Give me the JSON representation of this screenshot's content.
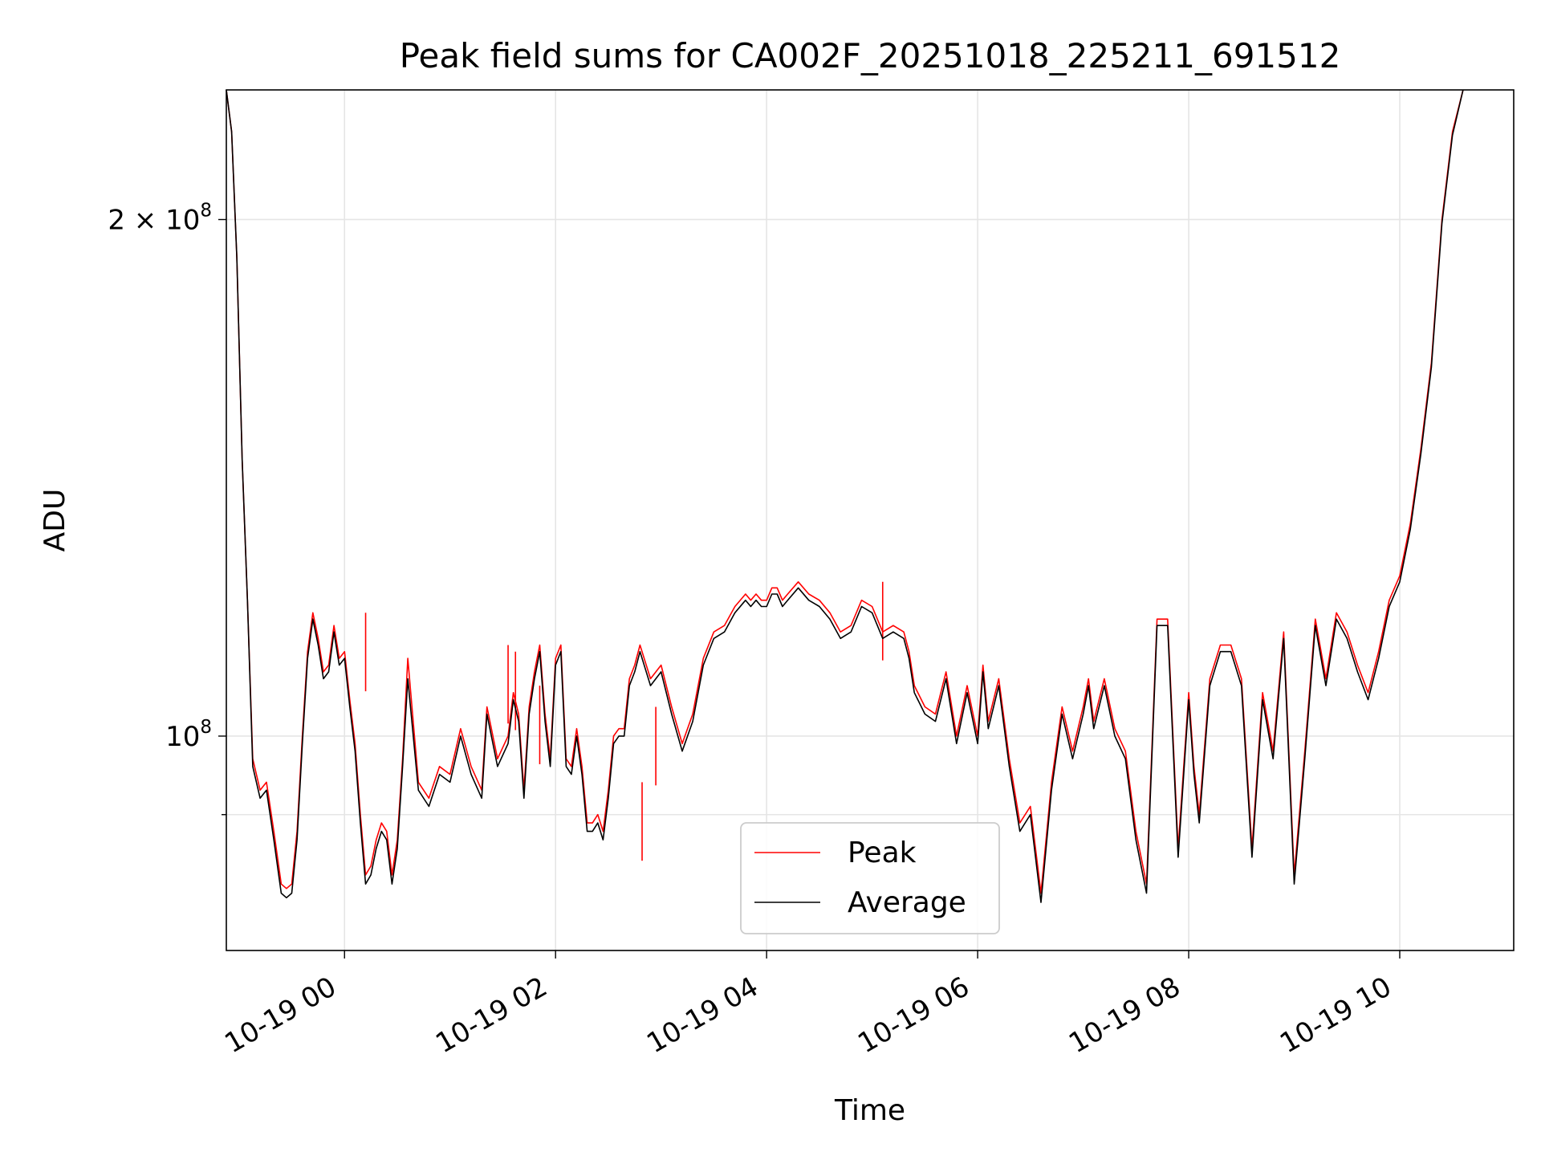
{
  "chart_data": {
    "type": "line",
    "title": "Peak field sums for CA002F_20251018_225211_691512",
    "xlabel": "Time",
    "ylabel": "ADU",
    "yscale": "log",
    "ylim": [
      75000000,
      238000000
    ],
    "xlim_hours": [
      -1.12,
      11.08
    ],
    "grid": true,
    "legend_position": "lower center",
    "x_ticks": [
      {
        "hour": 0,
        "label": "10-19 00"
      },
      {
        "hour": 2,
        "label": "10-19 02"
      },
      {
        "hour": 4,
        "label": "10-19 04"
      },
      {
        "hour": 6,
        "label": "10-19 06"
      },
      {
        "hour": 8,
        "label": "10-19 08"
      },
      {
        "hour": 10,
        "label": "10-19 10"
      }
    ],
    "y_ticks": [
      {
        "value": 200000000,
        "label": "2 × 10",
        "exp": "8"
      },
      {
        "value": 100000000,
        "label": "10",
        "exp": "8"
      }
    ],
    "y_minor_ticks": [
      90000000
    ],
    "series": [
      {
        "name": "Peak",
        "color": "#ff0000"
      },
      {
        "name": "Average",
        "color": "#000000"
      }
    ],
    "x_hours": [
      -1.12,
      -1.07,
      -1.02,
      -0.97,
      -0.92,
      -0.87,
      -0.8,
      -0.74,
      -0.67,
      -0.6,
      -0.55,
      -0.5,
      -0.45,
      -0.4,
      -0.35,
      -0.3,
      -0.25,
      -0.2,
      -0.15,
      -0.1,
      -0.05,
      0.0,
      0.05,
      0.1,
      0.15,
      0.2,
      0.25,
      0.3,
      0.35,
      0.4,
      0.45,
      0.5,
      0.55,
      0.6,
      0.7,
      0.8,
      0.9,
      1.0,
      1.1,
      1.2,
      1.3,
      1.35,
      1.45,
      1.55,
      1.6,
      1.65,
      1.7,
      1.75,
      1.8,
      1.85,
      1.9,
      1.95,
      2.0,
      2.05,
      2.1,
      2.15,
      2.2,
      2.25,
      2.3,
      2.35,
      2.4,
      2.45,
      2.5,
      2.55,
      2.6,
      2.65,
      2.7,
      2.75,
      2.8,
      2.9,
      3.0,
      3.1,
      3.2,
      3.3,
      3.4,
      3.5,
      3.6,
      3.7,
      3.8,
      3.85,
      3.9,
      3.95,
      4.0,
      4.05,
      4.1,
      4.15,
      4.2,
      4.3,
      4.4,
      4.5,
      4.6,
      4.7,
      4.8,
      4.9,
      5.0,
      5.1,
      5.2,
      5.3,
      5.35,
      5.4,
      5.5,
      5.6,
      5.7,
      5.8,
      5.9,
      6.0,
      6.05,
      6.1,
      6.2,
      6.3,
      6.4,
      6.5,
      6.6,
      6.7,
      6.8,
      6.9,
      7.0,
      7.05,
      7.1,
      7.2,
      7.3,
      7.4,
      7.5,
      7.6,
      7.7,
      7.8,
      7.9,
      8.0,
      8.05,
      8.1,
      8.2,
      8.3,
      8.4,
      8.5,
      8.6,
      8.7,
      8.8,
      8.9,
      9.0,
      9.1,
      9.2,
      9.3,
      9.4,
      9.5,
      9.6,
      9.7,
      9.8,
      9.9,
      10.0,
      10.1,
      10.2,
      10.3,
      10.4,
      10.5,
      10.6,
      10.7,
      10.8,
      10.9,
      11.0,
      11.08
    ],
    "peak_values": [
      238000000,
      225000000,
      190000000,
      145000000,
      120000000,
      97000000,
      93000000,
      94000000,
      88000000,
      82000000,
      81500000,
      82000000,
      88000000,
      100000000,
      112000000,
      118000000,
      114000000,
      109000000,
      110000000,
      116000000,
      111000000,
      112000000,
      105000000,
      99000000,
      90000000,
      83000000,
      84000000,
      87000000,
      89000000,
      88000000,
      83000000,
      87000000,
      97000000,
      111000000,
      94000000,
      92000000,
      96000000,
      95000000,
      101000000,
      96000000,
      93000000,
      104000000,
      97000000,
      100000000,
      106000000,
      103000000,
      93000000,
      104000000,
      109000000,
      113000000,
      103000000,
      97000000,
      111000000,
      113000000,
      97000000,
      96000000,
      101000000,
      96000000,
      89000000,
      89000000,
      90000000,
      88000000,
      93000000,
      100000000,
      101000000,
      101000000,
      108000000,
      110000000,
      113000000,
      108000000,
      110000000,
      104000000,
      99000000,
      103000000,
      111000000,
      115000000,
      116000000,
      119000000,
      121000000,
      120000000,
      121000000,
      120000000,
      120000000,
      122000000,
      122000000,
      120000000,
      121000000,
      123000000,
      121000000,
      120000000,
      118000000,
      115000000,
      116000000,
      120000000,
      119000000,
      115000000,
      116000000,
      115000000,
      112000000,
      107000000,
      104000000,
      103000000,
      109000000,
      100000000,
      107000000,
      100000000,
      110000000,
      102000000,
      108000000,
      97000000,
      89000000,
      91000000,
      81000000,
      94000000,
      104000000,
      98000000,
      104000000,
      108000000,
      102000000,
      108000000,
      101000000,
      98000000,
      88000000,
      82000000,
      117000000,
      117000000,
      86000000,
      106000000,
      96000000,
      90000000,
      108000000,
      113000000,
      113000000,
      108000000,
      86000000,
      106000000,
      98000000,
      115000000,
      83000000,
      98000000,
      117000000,
      108000000,
      118000000,
      115000000,
      110000000,
      106000000,
      112000000,
      120000000,
      124000000,
      133000000,
      147000000,
      165000000,
      200000000,
      225000000,
      238000000
    ],
    "average_values": [
      238000000,
      225000000,
      190000000,
      145000000,
      120000000,
      96000000,
      92000000,
      93000000,
      87000000,
      81000000,
      80500000,
      81000000,
      87000000,
      99000000,
      111000000,
      117000000,
      113000000,
      108000000,
      109000000,
      115000000,
      110000000,
      111000000,
      104000000,
      98000000,
      89000000,
      82000000,
      83000000,
      86000000,
      88000000,
      87000000,
      82000000,
      86000000,
      96000000,
      108000000,
      93000000,
      91000000,
      95000000,
      94000000,
      100000000,
      95000000,
      92000000,
      103000000,
      96000000,
      99000000,
      105000000,
      102000000,
      92000000,
      103000000,
      108000000,
      112000000,
      102000000,
      96000000,
      110000000,
      112000000,
      96000000,
      95000000,
      100000000,
      95000000,
      88000000,
      88000000,
      89000000,
      87000000,
      92000000,
      99000000,
      100000000,
      100000000,
      107000000,
      109000000,
      112000000,
      107000000,
      109000000,
      103000000,
      98000000,
      102000000,
      110000000,
      114000000,
      115000000,
      118000000,
      120000000,
      119000000,
      120000000,
      119000000,
      119000000,
      121000000,
      121000000,
      119000000,
      120000000,
      122000000,
      120000000,
      119000000,
      117000000,
      114000000,
      115000000,
      119000000,
      118000000,
      114000000,
      115000000,
      114000000,
      111000000,
      106000000,
      103000000,
      102000000,
      108000000,
      99000000,
      106000000,
      99000000,
      109000000,
      101000000,
      107000000,
      96000000,
      88000000,
      90000000,
      80000000,
      93000000,
      103000000,
      97000000,
      103000000,
      107000000,
      101000000,
      107000000,
      100000000,
      97000000,
      87000000,
      81000000,
      116000000,
      116000000,
      85000000,
      105000000,
      95000000,
      89000000,
      107000000,
      112000000,
      112000000,
      107000000,
      85000000,
      105000000,
      97000000,
      114000000,
      82000000,
      97000000,
      116000000,
      107000000,
      117000000,
      114000000,
      109000000,
      105000000,
      111000000,
      119000000,
      123000000,
      132000000,
      146000000,
      164000000,
      199000000,
      224000000,
      238000000
    ],
    "peak_spikes": [
      {
        "hour": 0.2,
        "value": 118000000
      },
      {
        "hour": 1.55,
        "value": 113000000
      },
      {
        "hour": 1.62,
        "value": 112000000
      },
      {
        "hour": 1.85,
        "value": 107000000
      },
      {
        "hour": 2.82,
        "value": 94000000
      },
      {
        "hour": 2.95,
        "value": 104000000
      },
      {
        "hour": 5.1,
        "value": 123000000
      }
    ]
  }
}
